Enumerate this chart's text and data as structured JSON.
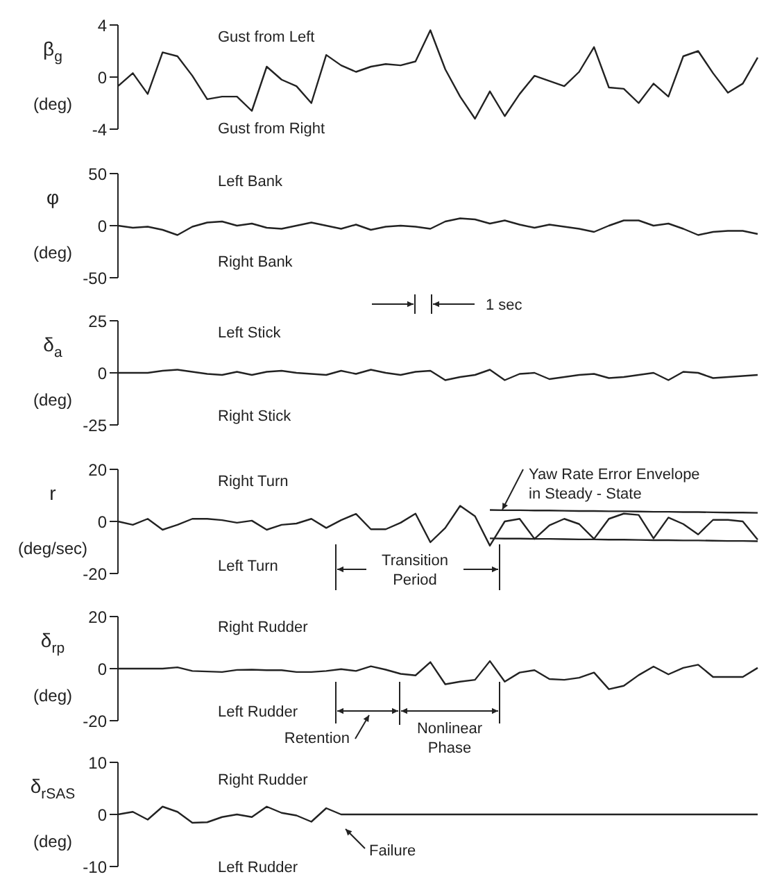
{
  "chart_data": [
    {
      "type": "line",
      "ylabel": "β$_{g}$\n(deg)",
      "marker": "none",
      "tick_labels": "y",
      "ylim": [
        -4,
        4
      ],
      "yticks": [
        -4,
        0,
        4
      ],
      "categories": [
        null,
        null,
        null,
        null,
        null,
        null,
        null,
        null,
        null,
        null,
        null,
        null,
        null,
        null,
        null,
        null,
        null,
        null,
        null,
        null,
        null,
        null,
        null,
        null,
        null,
        null,
        null,
        null,
        null,
        null,
        null,
        null,
        null,
        null,
        null,
        null,
        null,
        null,
        null,
        null,
        null,
        null,
        null,
        null
      ],
      "series": [
        {
          "color": "#222222",
          "values": [
            -0.7,
            0.3,
            -1.3,
            1.9,
            1.6,
            0.1,
            -1.7,
            -1.5,
            -1.5,
            -2.6,
            0.8,
            -0.2,
            -0.7,
            -2.0,
            1.7,
            0.9,
            0.4,
            0.8,
            1.0,
            0.9,
            1.2,
            3.6,
            0.6,
            -1.5,
            -3.2,
            -1.1,
            -3.0,
            -1.3,
            0.1,
            -0.3,
            -0.7,
            0.4,
            2.3,
            -0.8,
            -0.9,
            -2.0,
            -0.5,
            -1.5,
            1.6,
            2.0,
            0.3,
            -1.2,
            -0.5,
            1.5
          ]
        }
      ],
      "annotations": [
        "Gust from Left",
        "Gust from Right"
      ]
    },
    {
      "type": "line",
      "ylabel": "φ\n(deg)",
      "marker": "none",
      "tick_labels": "y",
      "ylim": [
        -50,
        50
      ],
      "yticks": [
        -50,
        0,
        50
      ],
      "categories": [
        null,
        null,
        null,
        null,
        null,
        null,
        null,
        null,
        null,
        null,
        null,
        null,
        null,
        null,
        null,
        null,
        null,
        null,
        null,
        null,
        null,
        null,
        null,
        null,
        null,
        null,
        null,
        null,
        null,
        null,
        null,
        null,
        null,
        null,
        null,
        null,
        null,
        null,
        null,
        null,
        null,
        null,
        null,
        null
      ],
      "series": [
        {
          "color": "#222222",
          "values": [
            0,
            -2,
            -1,
            -4,
            -9,
            -1,
            3,
            4,
            0,
            2,
            -2,
            -3,
            0,
            3,
            0,
            -3,
            1,
            -4,
            -1,
            0,
            -1,
            -3,
            4,
            7,
            6,
            2,
            5,
            1,
            -2,
            1,
            -1,
            -3,
            -6,
            0,
            5,
            5,
            0,
            2,
            -3,
            -9,
            -6,
            -5,
            -5,
            -8
          ]
        }
      ],
      "annotations": [
        "Left Bank",
        "Right Bank",
        "1 sec"
      ]
    },
    {
      "type": "line",
      "ylabel": "δ$_{a}$\n(deg)",
      "marker": "none",
      "tick_labels": "y",
      "ylim": [
        -25,
        25
      ],
      "yticks": [
        -25,
        0,
        25
      ],
      "categories": [
        null,
        null,
        null,
        null,
        null,
        null,
        null,
        null,
        null,
        null,
        null,
        null,
        null,
        null,
        null,
        null,
        null,
        null,
        null,
        null,
        null,
        null,
        null,
        null,
        null,
        null,
        null,
        null,
        null,
        null,
        null,
        null,
        null,
        null,
        null,
        null,
        null,
        null,
        null,
        null,
        null,
        null,
        null,
        null
      ],
      "series": [
        {
          "color": "#222222",
          "values": [
            0,
            0,
            0,
            1,
            1.5,
            0.5,
            -0.5,
            -1,
            0.5,
            -1,
            0.5,
            1,
            0,
            -0.5,
            -1,
            1,
            -0.5,
            1.5,
            0,
            -1,
            0.5,
            1,
            -3.5,
            -2,
            -1,
            1.5,
            -3.5,
            -0.5,
            0,
            -3,
            -2,
            -1,
            -0.5,
            -2.5,
            -2,
            -1,
            0,
            -3.5,
            0.5,
            0,
            -2.5,
            -2,
            -1.5,
            -1
          ]
        }
      ],
      "annotations": [
        "Left Stick",
        "Right Stick"
      ]
    },
    {
      "type": "line",
      "ylabel": "r\n(deg/sec)",
      "marker": "none",
      "tick_labels": "y",
      "ylim": [
        -20,
        20
      ],
      "yticks": [
        -20,
        0,
        20
      ],
      "categories": [
        null,
        null,
        null,
        null,
        null,
        null,
        null,
        null,
        null,
        null,
        null,
        null,
        null,
        null,
        null,
        null,
        null,
        null,
        null,
        null,
        null,
        null,
        null,
        null,
        null,
        null,
        null,
        null,
        null,
        null,
        null,
        null,
        null,
        null,
        null,
        null,
        null,
        null,
        null,
        null,
        null,
        null,
        null,
        null
      ],
      "series": [
        {
          "color": "#222222",
          "values": [
            0,
            -1.3,
            1,
            -3.2,
            -1.3,
            1,
            1,
            0.5,
            -0.5,
            0.3,
            -3.2,
            -1.3,
            -0.8,
            1,
            -2.5,
            0.5,
            2.9,
            -3,
            -3,
            -0.5,
            3,
            -8,
            -2.5,
            6,
            2,
            -9.3,
            0,
            1,
            -6.7,
            -1.5,
            1,
            -1,
            -6.7,
            1,
            3,
            2.5,
            -6.5,
            1.5,
            -1,
            -5,
            0.6,
            0.6,
            0,
            -7
          ]
        },
        {
          "color": "#222222",
          "values": [
            null,
            null,
            null,
            null,
            null,
            null,
            null,
            null,
            null,
            null,
            null,
            null,
            null,
            null,
            null,
            null,
            null,
            null,
            null,
            null,
            null,
            null,
            null,
            null,
            null,
            4.4,
            4.3,
            4.3,
            4.2,
            4.2,
            4.1,
            4.0,
            4.0,
            3.9,
            3.9,
            3.8,
            3.7,
            3.7,
            3.6,
            3.6,
            3.5,
            3.4,
            3.4,
            3.3
          ]
        },
        {
          "color": "#222222",
          "values": [
            null,
            null,
            null,
            null,
            null,
            null,
            null,
            null,
            null,
            null,
            null,
            null,
            null,
            null,
            null,
            null,
            null,
            null,
            null,
            null,
            null,
            null,
            null,
            null,
            null,
            -6.5,
            -6.6,
            -6.6,
            -6.7,
            -6.7,
            -6.8,
            -6.9,
            -6.9,
            -7.0,
            -7.0,
            -7.1,
            -7.2,
            -7.2,
            -7.3,
            -7.3,
            -7.4,
            -7.5,
            -7.5,
            -7.6
          ]
        }
      ],
      "annotations": [
        "Right Turn",
        "Left Turn",
        "Transition\nPeriod",
        "Yaw Rate Error Envelope\nin Steady - State"
      ]
    },
    {
      "type": "line",
      "ylabel": "δ$_{r}$$_{p}$\n(deg)",
      "marker": "none",
      "tick_labels": "y",
      "ylim": [
        -20,
        20
      ],
      "yticks": [
        -20,
        0,
        20
      ],
      "categories": [
        null,
        null,
        null,
        null,
        null,
        null,
        null,
        null,
        null,
        null,
        null,
        null,
        null,
        null,
        null,
        null,
        null,
        null,
        null,
        null,
        null,
        null,
        null,
        null,
        null,
        null,
        null,
        null,
        null,
        null,
        null,
        null,
        null,
        null,
        null,
        null,
        null,
        null,
        null,
        null,
        null,
        null,
        null,
        null
      ],
      "series": [
        {
          "color": "#222222",
          "values": [
            0,
            0,
            0,
            0,
            0.5,
            -0.9,
            -1.1,
            -1.3,
            -0.5,
            -0.4,
            -0.6,
            -0.6,
            -1.3,
            -1.3,
            -0.9,
            -0.2,
            -0.9,
            0.9,
            -0.4,
            -2,
            -2.6,
            2.5,
            -6,
            -5,
            -4.3,
            2.9,
            -5,
            -1.5,
            -0.6,
            -4,
            -4.3,
            -3.5,
            -1.5,
            -7.9,
            -6.6,
            -2.5,
            0.8,
            -2.2,
            0.3,
            1.5,
            -3.2,
            -3.2,
            -3.2,
            0.3
          ]
        }
      ],
      "annotations": [
        "Right Rudder",
        "Left Rudder",
        "Retention",
        "Nonlinear\nPhase"
      ]
    },
    {
      "type": "line",
      "ylabel": "δ$_{r}$$_{SAS}$\n(deg)",
      "marker": "none",
      "tick_labels": "y",
      "ylim": [
        -10,
        10
      ],
      "yticks": [
        -10,
        0,
        10
      ],
      "categories": [
        null,
        null,
        null,
        null,
        null,
        null,
        null,
        null,
        null,
        null,
        null,
        null,
        null,
        null,
        null,
        null,
        null,
        null,
        null,
        null,
        null,
        null,
        null,
        null,
        null,
        null,
        null,
        null,
        null,
        null,
        null,
        null,
        null,
        null,
        null,
        null,
        null,
        null,
        null,
        null,
        null,
        null,
        null,
        null
      ],
      "series": [
        {
          "color": "#222222",
          "values": [
            0,
            0.5,
            -1,
            1.5,
            0.5,
            -1.6,
            -1.5,
            -0.5,
            0,
            -0.5,
            1.5,
            0.3,
            -0.2,
            -1.4,
            1.2,
            0,
            0,
            0,
            0,
            0,
            0,
            0,
            0,
            0,
            0,
            0,
            0,
            0,
            0,
            0,
            0,
            0,
            0,
            0,
            0,
            0,
            0,
            0,
            0,
            0,
            0,
            0,
            0,
            0
          ]
        }
      ],
      "annotations": [
        "Right Rudder",
        "Left Rudder",
        "Failure"
      ]
    }
  ]
}
